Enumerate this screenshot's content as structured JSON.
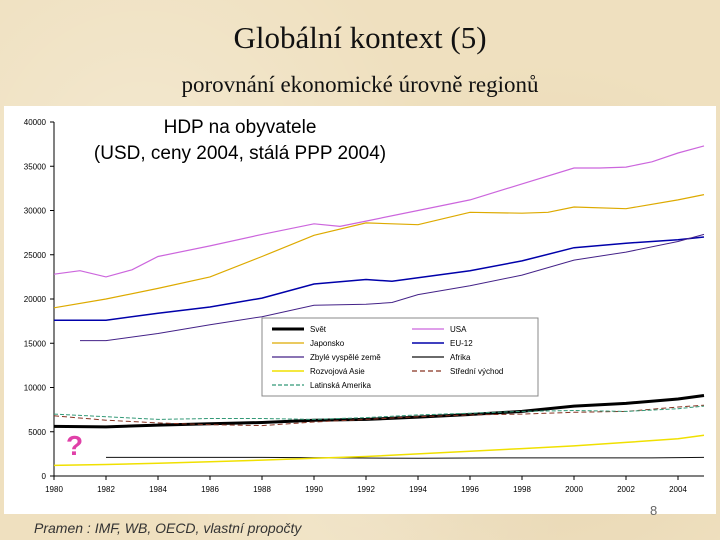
{
  "slide": {
    "title": "Globální kontext (5)",
    "subtitle": "porovnání ekonomické úrovně regionů",
    "source": "Pramen : IMF, WB, OECD, vlastní propočty",
    "page_number": "8",
    "question_mark": "?"
  },
  "chart_data": {
    "type": "line",
    "title": "HDP na obyvatele",
    "subtitle": "(USD, ceny 2004, stálá PPP 2004)",
    "xlim": [
      1980,
      2005
    ],
    "ylim": [
      0,
      40000
    ],
    "y_ticks": [
      0,
      5000,
      10000,
      15000,
      20000,
      25000,
      30000,
      35000,
      40000
    ],
    "x_ticks": [
      1980,
      1982,
      1984,
      1986,
      1988,
      1990,
      1992,
      1994,
      1996,
      1998,
      2000,
      2002,
      2004
    ],
    "grid": false,
    "legend_position": "center-right",
    "series": [
      {
        "name": "Svět",
        "color": "#000000",
        "width": 3.0,
        "dash": "",
        "x": [
          1980,
          1982,
          1984,
          1986,
          1988,
          1990,
          1992,
          1994,
          1996,
          1998,
          2000,
          2002,
          2004,
          2005
        ],
        "y": [
          5600,
          5550,
          5750,
          5900,
          6050,
          6300,
          6400,
          6650,
          6950,
          7300,
          7900,
          8200,
          8700,
          9100
        ]
      },
      {
        "name": "USA",
        "color": "#cc66dd",
        "width": 1.2,
        "dash": "",
        "x": [
          1980,
          1981,
          1982,
          1983,
          1984,
          1986,
          1988,
          1990,
          1991,
          1992,
          1994,
          1996,
          1998,
          2000,
          2001,
          2002,
          2003,
          2004,
          2005
        ],
        "y": [
          22800,
          23200,
          22500,
          23300,
          24800,
          26000,
          27300,
          28500,
          28200,
          28800,
          30000,
          31200,
          33000,
          34800,
          34800,
          34900,
          35500,
          36500,
          37300
        ]
      },
      {
        "name": "Japonsko",
        "color": "#ddaa00",
        "width": 1.2,
        "dash": "",
        "x": [
          1980,
          1982,
          1984,
          1986,
          1988,
          1990,
          1992,
          1994,
          1996,
          1998,
          1999,
          2000,
          2002,
          2004,
          2005
        ],
        "y": [
          19000,
          20000,
          21200,
          22500,
          24800,
          27200,
          28600,
          28400,
          29800,
          29700,
          29800,
          30400,
          30200,
          31200,
          31800
        ]
      },
      {
        "name": "EU-12",
        "color": "#0000aa",
        "width": 1.5,
        "dash": "",
        "x": [
          1980,
          1982,
          1984,
          1986,
          1988,
          1990,
          1992,
          1993,
          1994,
          1996,
          1998,
          2000,
          2002,
          2004,
          2005
        ],
        "y": [
          17600,
          17600,
          18400,
          19100,
          20100,
          21700,
          22200,
          22000,
          22400,
          23200,
          24300,
          25800,
          26300,
          26700,
          27000
        ]
      },
      {
        "name": "Zbylé vyspělé země",
        "color": "#442288",
        "width": 1.0,
        "dash": "",
        "x": [
          1981,
          1982,
          1984,
          1986,
          1988,
          1990,
          1992,
          1993,
          1994,
          1996,
          1998,
          2000,
          2002,
          2004,
          2005
        ],
        "y": [
          15300,
          15300,
          16100,
          17100,
          18000,
          19300,
          19400,
          19600,
          20500,
          21500,
          22700,
          24400,
          25300,
          26500,
          27300
        ]
      },
      {
        "name": "Afrika",
        "color": "#111111",
        "width": 1.0,
        "dash": "",
        "x": [
          1982,
          1985,
          1988,
          1991,
          1994,
          1997,
          2000,
          2003,
          2005
        ],
        "y": [
          2100,
          2100,
          2100,
          2050,
          2000,
          2050,
          2050,
          2050,
          2100
        ]
      },
      {
        "name": "Rozvojová Asie",
        "color": "#f0e000",
        "width": 1.5,
        "dash": "",
        "x": [
          1980,
          1982,
          1984,
          1986,
          1988,
          1990,
          1992,
          1994,
          1996,
          1998,
          2000,
          2002,
          2004,
          2005
        ],
        "y": [
          1200,
          1300,
          1450,
          1600,
          1800,
          2000,
          2200,
          2500,
          2800,
          3100,
          3400,
          3800,
          4200,
          4600
        ]
      },
      {
        "name": "Střední východ",
        "color": "#883322",
        "width": 1.0,
        "dash": "5,3",
        "x": [
          1980,
          1982,
          1984,
          1986,
          1988,
          1990,
          1992,
          1994,
          1996,
          1998,
          2000,
          2002,
          2004,
          2005
        ],
        "y": [
          6800,
          6300,
          6000,
          5800,
          5700,
          6100,
          6400,
          6700,
          6900,
          7000,
          7200,
          7300,
          7800,
          8000
        ]
      },
      {
        "name": "Latinská Amerika",
        "color": "#339977",
        "width": 1.0,
        "dash": "4,2",
        "x": [
          1980,
          1982,
          1984,
          1986,
          1988,
          1990,
          1992,
          1994,
          1996,
          1998,
          2000,
          2002,
          2004,
          2005
        ],
        "y": [
          7000,
          6700,
          6400,
          6500,
          6500,
          6400,
          6600,
          6900,
          7100,
          7300,
          7400,
          7300,
          7600,
          7900
        ]
      }
    ]
  }
}
